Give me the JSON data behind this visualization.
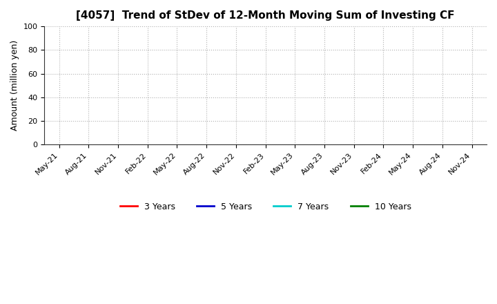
{
  "title": "[4057]  Trend of StDev of 12-Month Moving Sum of Investing CF",
  "ylabel": "Amount (million yen)",
  "ylim": [
    0,
    100
  ],
  "yticks": [
    0,
    20,
    40,
    60,
    80,
    100
  ],
  "x_labels": [
    "May-21",
    "Aug-21",
    "Nov-21",
    "Feb-22",
    "May-22",
    "Aug-22",
    "Nov-22",
    "Feb-23",
    "May-23",
    "Aug-23",
    "Nov-23",
    "Feb-24",
    "May-24",
    "Aug-24",
    "Nov-24"
  ],
  "background_color": "#ffffff",
  "plot_bg_color": "#ffffff",
  "grid_color": "#b0b0b0",
  "legend_entries": [
    {
      "label": "3 Years",
      "color": "#ff0000"
    },
    {
      "label": "5 Years",
      "color": "#0000cc"
    },
    {
      "label": "7 Years",
      "color": "#00cccc"
    },
    {
      "label": "10 Years",
      "color": "#008000"
    }
  ],
  "title_fontsize": 11,
  "axis_label_fontsize": 9,
  "tick_fontsize": 8,
  "legend_fontsize": 9
}
